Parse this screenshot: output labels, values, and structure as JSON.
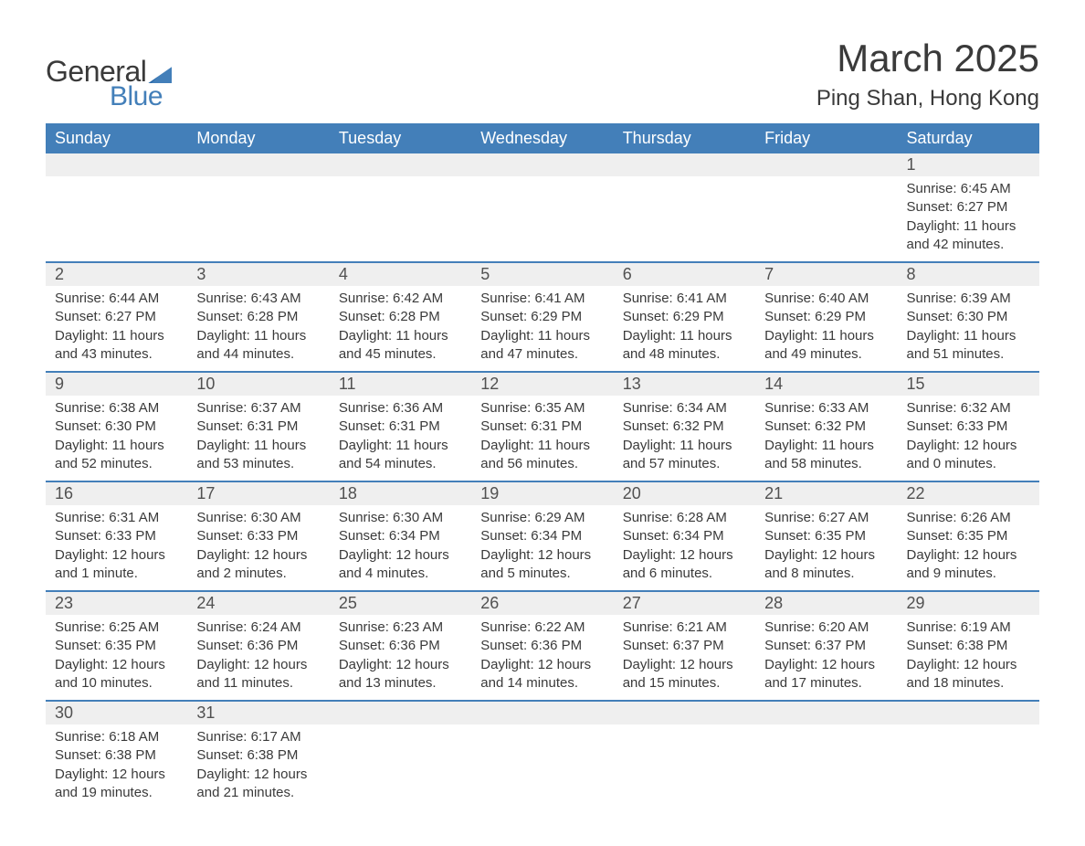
{
  "logo": {
    "text1": "General",
    "text2": "Blue"
  },
  "title": "March 2025",
  "location": "Ping Shan, Hong Kong",
  "colors": {
    "header_bg": "#437fb9",
    "header_text": "#ffffff",
    "daynum_bg": "#efefef",
    "row_border": "#437fb9",
    "body_text": "#3a3a3a"
  },
  "weekdays": [
    "Sunday",
    "Monday",
    "Tuesday",
    "Wednesday",
    "Thursday",
    "Friday",
    "Saturday"
  ],
  "weeks": [
    [
      null,
      null,
      null,
      null,
      null,
      null,
      {
        "n": "1",
        "sunrise": "6:45 AM",
        "sunset": "6:27 PM",
        "daylight": "11 hours and 42 minutes."
      }
    ],
    [
      {
        "n": "2",
        "sunrise": "6:44 AM",
        "sunset": "6:27 PM",
        "daylight": "11 hours and 43 minutes."
      },
      {
        "n": "3",
        "sunrise": "6:43 AM",
        "sunset": "6:28 PM",
        "daylight": "11 hours and 44 minutes."
      },
      {
        "n": "4",
        "sunrise": "6:42 AM",
        "sunset": "6:28 PM",
        "daylight": "11 hours and 45 minutes."
      },
      {
        "n": "5",
        "sunrise": "6:41 AM",
        "sunset": "6:29 PM",
        "daylight": "11 hours and 47 minutes."
      },
      {
        "n": "6",
        "sunrise": "6:41 AM",
        "sunset": "6:29 PM",
        "daylight": "11 hours and 48 minutes."
      },
      {
        "n": "7",
        "sunrise": "6:40 AM",
        "sunset": "6:29 PM",
        "daylight": "11 hours and 49 minutes."
      },
      {
        "n": "8",
        "sunrise": "6:39 AM",
        "sunset": "6:30 PM",
        "daylight": "11 hours and 51 minutes."
      }
    ],
    [
      {
        "n": "9",
        "sunrise": "6:38 AM",
        "sunset": "6:30 PM",
        "daylight": "11 hours and 52 minutes."
      },
      {
        "n": "10",
        "sunrise": "6:37 AM",
        "sunset": "6:31 PM",
        "daylight": "11 hours and 53 minutes."
      },
      {
        "n": "11",
        "sunrise": "6:36 AM",
        "sunset": "6:31 PM",
        "daylight": "11 hours and 54 minutes."
      },
      {
        "n": "12",
        "sunrise": "6:35 AM",
        "sunset": "6:31 PM",
        "daylight": "11 hours and 56 minutes."
      },
      {
        "n": "13",
        "sunrise": "6:34 AM",
        "sunset": "6:32 PM",
        "daylight": "11 hours and 57 minutes."
      },
      {
        "n": "14",
        "sunrise": "6:33 AM",
        "sunset": "6:32 PM",
        "daylight": "11 hours and 58 minutes."
      },
      {
        "n": "15",
        "sunrise": "6:32 AM",
        "sunset": "6:33 PM",
        "daylight": "12 hours and 0 minutes."
      }
    ],
    [
      {
        "n": "16",
        "sunrise": "6:31 AM",
        "sunset": "6:33 PM",
        "daylight": "12 hours and 1 minute."
      },
      {
        "n": "17",
        "sunrise": "6:30 AM",
        "sunset": "6:33 PM",
        "daylight": "12 hours and 2 minutes."
      },
      {
        "n": "18",
        "sunrise": "6:30 AM",
        "sunset": "6:34 PM",
        "daylight": "12 hours and 4 minutes."
      },
      {
        "n": "19",
        "sunrise": "6:29 AM",
        "sunset": "6:34 PM",
        "daylight": "12 hours and 5 minutes."
      },
      {
        "n": "20",
        "sunrise": "6:28 AM",
        "sunset": "6:34 PM",
        "daylight": "12 hours and 6 minutes."
      },
      {
        "n": "21",
        "sunrise": "6:27 AM",
        "sunset": "6:35 PM",
        "daylight": "12 hours and 8 minutes."
      },
      {
        "n": "22",
        "sunrise": "6:26 AM",
        "sunset": "6:35 PM",
        "daylight": "12 hours and 9 minutes."
      }
    ],
    [
      {
        "n": "23",
        "sunrise": "6:25 AM",
        "sunset": "6:35 PM",
        "daylight": "12 hours and 10 minutes."
      },
      {
        "n": "24",
        "sunrise": "6:24 AM",
        "sunset": "6:36 PM",
        "daylight": "12 hours and 11 minutes."
      },
      {
        "n": "25",
        "sunrise": "6:23 AM",
        "sunset": "6:36 PM",
        "daylight": "12 hours and 13 minutes."
      },
      {
        "n": "26",
        "sunrise": "6:22 AM",
        "sunset": "6:36 PM",
        "daylight": "12 hours and 14 minutes."
      },
      {
        "n": "27",
        "sunrise": "6:21 AM",
        "sunset": "6:37 PM",
        "daylight": "12 hours and 15 minutes."
      },
      {
        "n": "28",
        "sunrise": "6:20 AM",
        "sunset": "6:37 PM",
        "daylight": "12 hours and 17 minutes."
      },
      {
        "n": "29",
        "sunrise": "6:19 AM",
        "sunset": "6:38 PM",
        "daylight": "12 hours and 18 minutes."
      }
    ],
    [
      {
        "n": "30",
        "sunrise": "6:18 AM",
        "sunset": "6:38 PM",
        "daylight": "12 hours and 19 minutes."
      },
      {
        "n": "31",
        "sunrise": "6:17 AM",
        "sunset": "6:38 PM",
        "daylight": "12 hours and 21 minutes."
      },
      null,
      null,
      null,
      null,
      null
    ]
  ],
  "labels": {
    "sunrise": "Sunrise:",
    "sunset": "Sunset:",
    "daylight": "Daylight:"
  }
}
